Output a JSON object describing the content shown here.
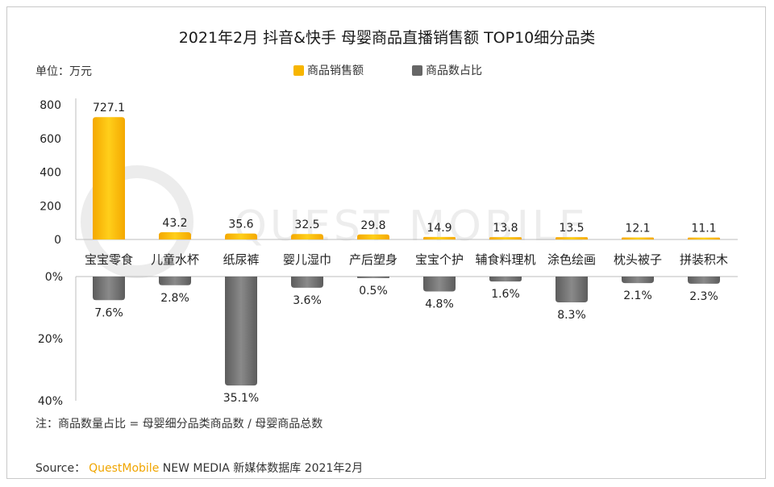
{
  "title": "2021年2月 抖音&快手 母婴商品直播销售额 TOP10细分品类",
  "unit_label": "单位：万元",
  "legend": [
    {
      "label": "商品销售额",
      "color": "#f7b500"
    },
    {
      "label": "商品数占比",
      "color": "#6e6e6e"
    }
  ],
  "note": "注：商品数量占比 = 母婴细分品类商品数 / 母婴商品总数",
  "source": {
    "prefix": "Source：",
    "brand": "QuestMobile",
    "rest": "NEW MEDIA 新媒体数据库 2021年2月"
  },
  "watermark": "QUEST MOBILE",
  "chart_data": {
    "type": "bar",
    "categories": [
      "宝宝零食",
      "儿童水杯",
      "纸尿裤",
      "婴儿湿巾",
      "产后塑身",
      "宝宝个护",
      "辅食料理机",
      "涂色绘画",
      "枕头被子",
      "拼装积木"
    ],
    "series": [
      {
        "name": "商品销售额",
        "unit": "万元",
        "values": [
          727.1,
          43.2,
          35.6,
          32.5,
          29.8,
          14.9,
          13.8,
          13.5,
          12.1,
          11.1
        ],
        "labels": [
          "727.1",
          "43.2",
          "35.6",
          "32.5",
          "29.8",
          "14.9",
          "13.8",
          "13.5",
          "12.1",
          "11.1"
        ]
      },
      {
        "name": "商品数占比",
        "unit": "%",
        "values": [
          7.6,
          2.8,
          35.1,
          3.6,
          0.5,
          4.8,
          1.6,
          8.3,
          2.1,
          2.3
        ],
        "labels": [
          "7.6%",
          "2.8%",
          "35.1%",
          "3.6%",
          "0.5%",
          "4.8%",
          "1.6%",
          "8.3%",
          "2.1%",
          "2.3%"
        ]
      }
    ],
    "top_axis": {
      "ylim": [
        0,
        800
      ],
      "ticks": [
        0,
        200,
        400,
        600,
        800
      ]
    },
    "bottom_axis": {
      "ylim": [
        0,
        40
      ],
      "ticks": [
        0,
        20,
        40
      ],
      "tick_labels": [
        "0%",
        "20%",
        "40%"
      ],
      "inverted": true
    }
  }
}
